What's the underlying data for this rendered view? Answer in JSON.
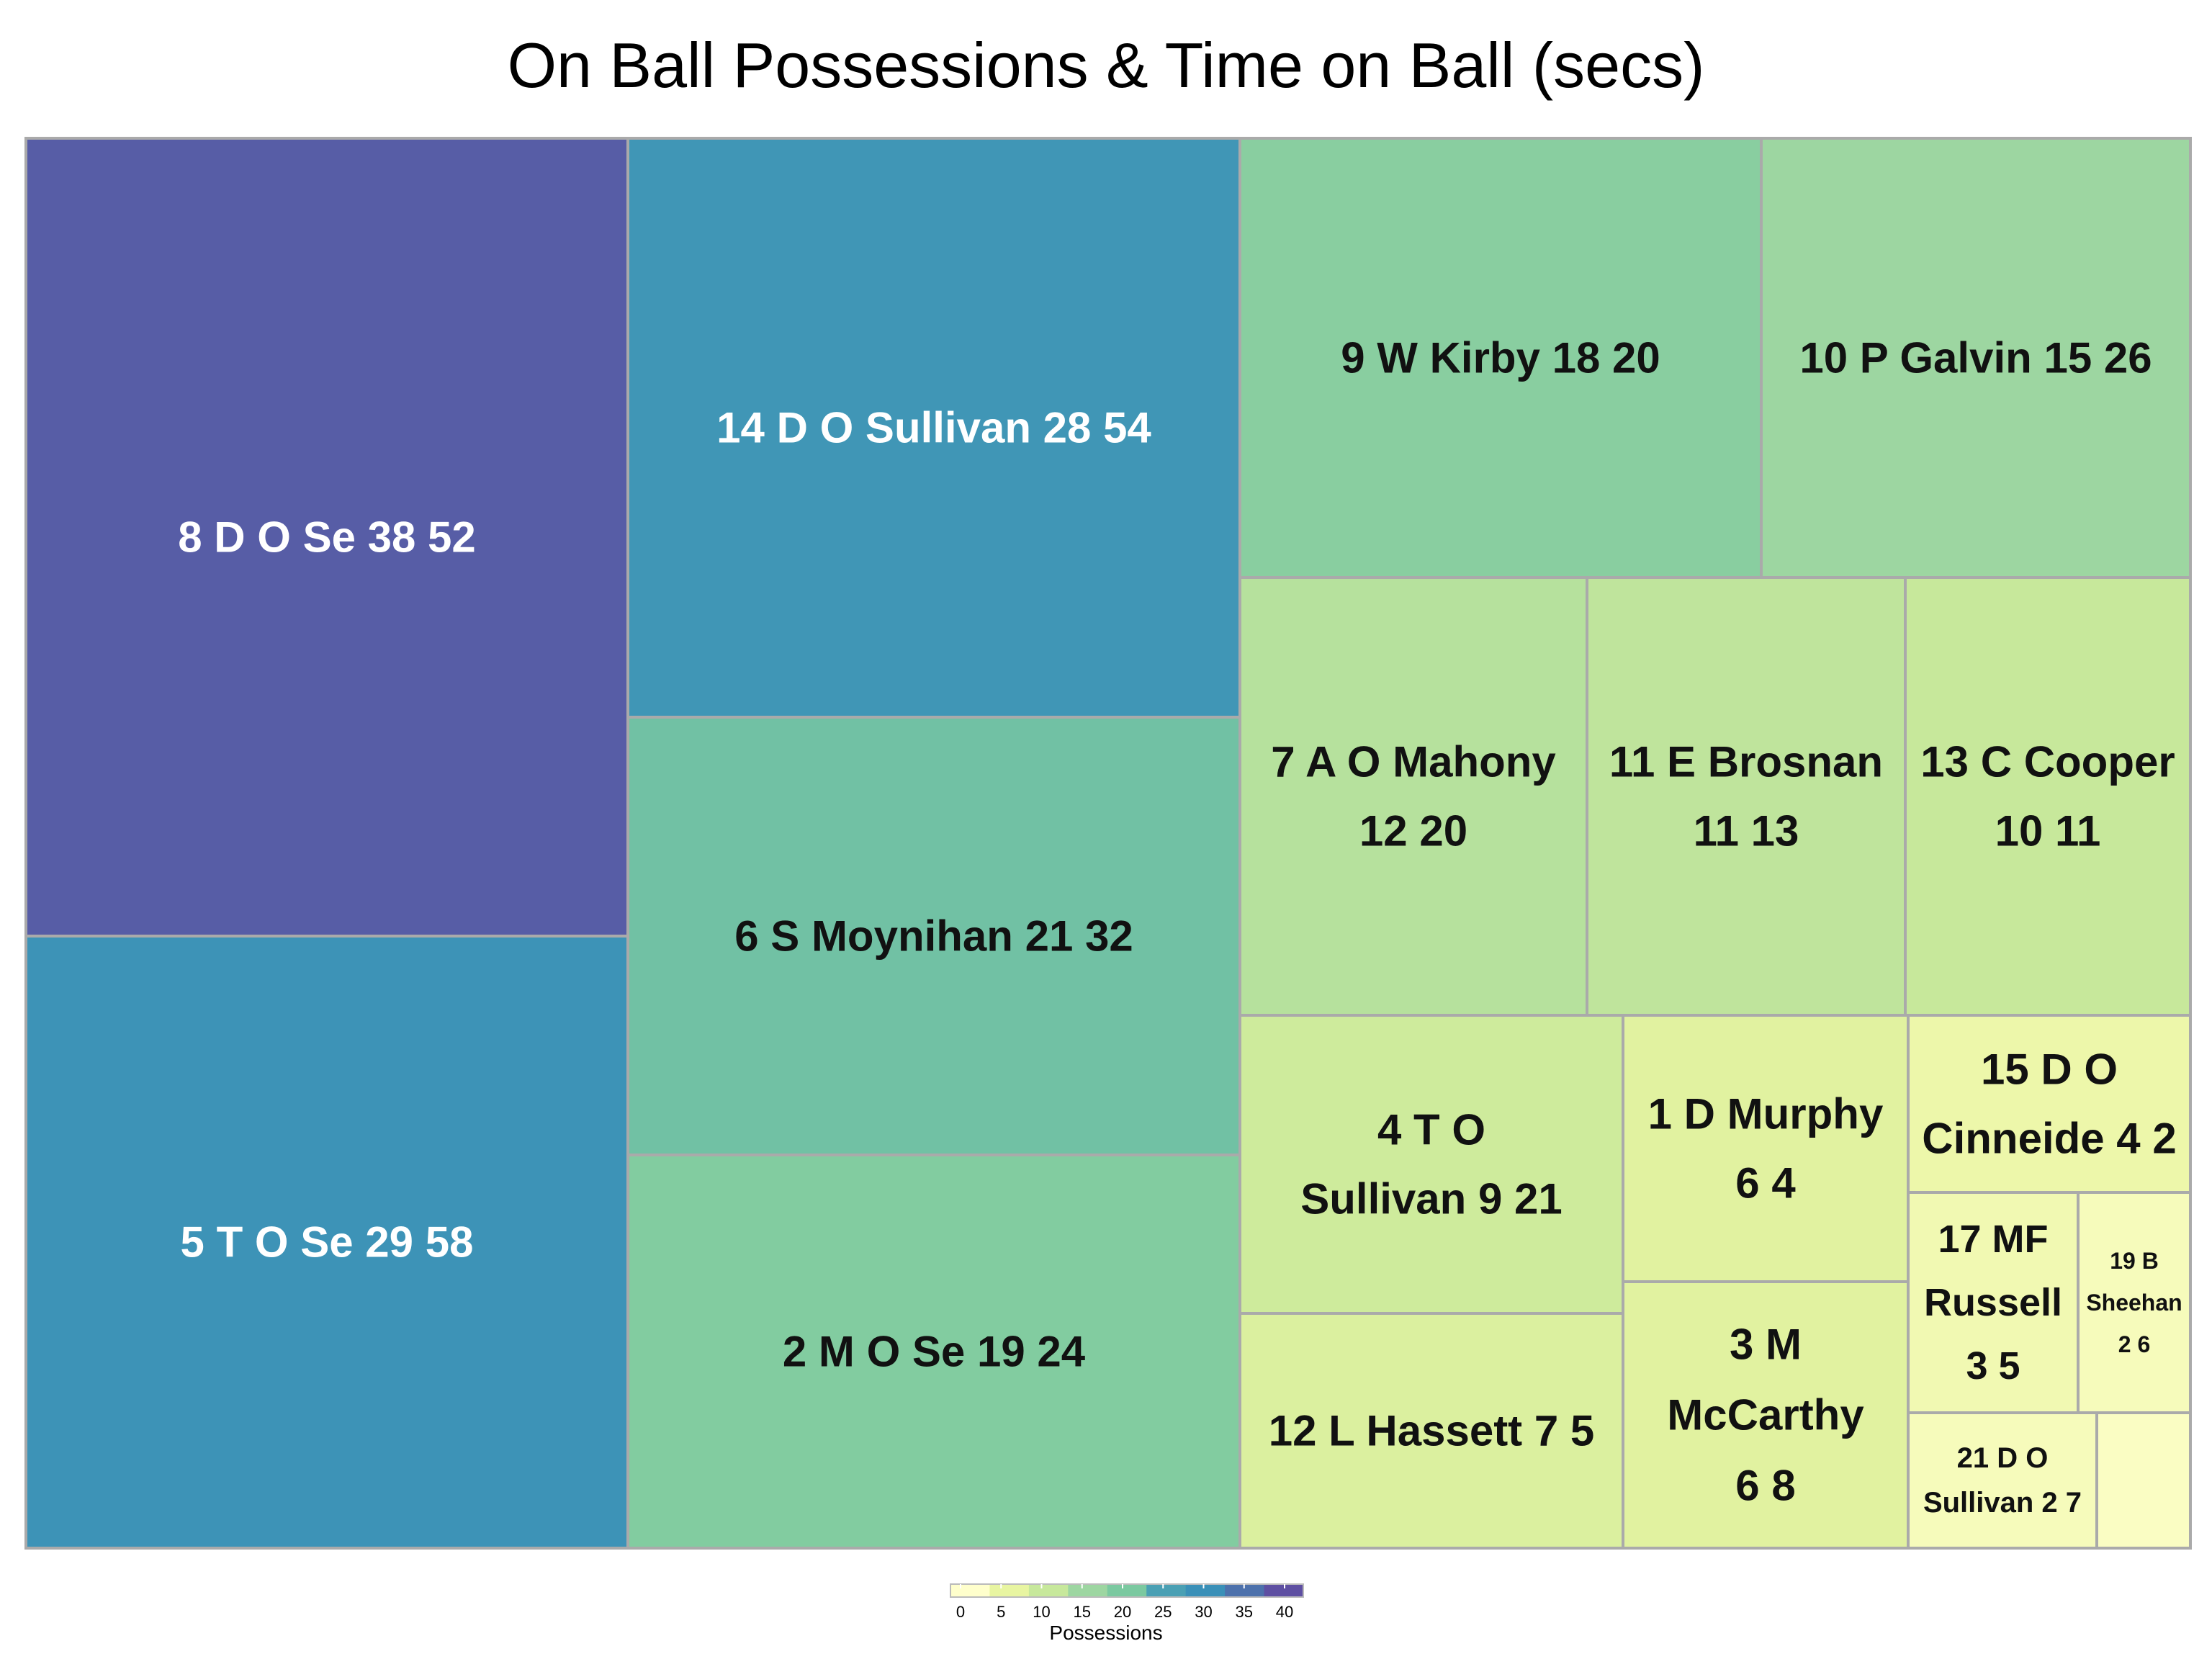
{
  "chart_data": {
    "type": "treemap",
    "title": "On Ball Possessions & Time on Ball (secs)",
    "value_field": "Time on Ball (secs)",
    "color_field": "Possessions",
    "tiles": [
      {
        "label": "8 D O Se 38 52",
        "lines": [
          "8 D O Se 38 52"
        ],
        "possessions": 38,
        "time": 52
      },
      {
        "label": "5 T O Se 29 58",
        "lines": [
          "5 T O Se 29 58"
        ],
        "possessions": 29,
        "time": 58
      },
      {
        "label": "14 D O Sullivan 28 54",
        "lines": [
          "14 D O Sullivan 28 54"
        ],
        "possessions": 28,
        "time": 54
      },
      {
        "label": "6 S Moynihan 21 32",
        "lines": [
          "6 S Moynihan 21 32"
        ],
        "possessions": 21,
        "time": 32
      },
      {
        "label": "2 M O Se 19 24",
        "lines": [
          "2 M O Se 19 24"
        ],
        "possessions": 19,
        "time": 24
      },
      {
        "label": "9 W Kirby 18 20",
        "lines": [
          "9 W Kirby 18 20"
        ],
        "possessions": 18,
        "time": 20
      },
      {
        "label": "10 P Galvin 15 26",
        "lines": [
          "10 P Galvin 15 26"
        ],
        "possessions": 15,
        "time": 26
      },
      {
        "label": "7 A O Mahony 12 20",
        "lines": [
          "7 A O Mahony",
          "12 20"
        ],
        "possessions": 12,
        "time": 20
      },
      {
        "label": "11 E Brosnan 11 13",
        "lines": [
          "11 E Brosnan",
          "11 13"
        ],
        "possessions": 11,
        "time": 13
      },
      {
        "label": "13 C Cooper 10 11",
        "lines": [
          "13 C Cooper",
          "10 11"
        ],
        "possessions": 10,
        "time": 11
      },
      {
        "label": "4 T O Sullivan 9 21",
        "lines": [
          "4 T O",
          "Sullivan 9 21"
        ],
        "possessions": 9,
        "time": 21
      },
      {
        "label": "12 L Hassett 7 5",
        "lines": [
          "12 L Hassett 7 5"
        ],
        "possessions": 7,
        "time": 5
      },
      {
        "label": "1 D Murphy 6 4",
        "lines": [
          "1 D Murphy",
          "6 4"
        ],
        "possessions": 6,
        "time": 4
      },
      {
        "label": "3 M McCarthy 6 8",
        "lines": [
          "3 M",
          "McCarthy",
          "6 8"
        ],
        "possessions": 6,
        "time": 8
      },
      {
        "label": "15 D O Cinneide 4 2",
        "lines": [
          "15 D O",
          "Cinneide 4 2"
        ],
        "possessions": 4,
        "time": 2
      },
      {
        "label": "17 MF Russell 3 5",
        "lines": [
          "17 MF",
          "Russell",
          "3 5"
        ],
        "possessions": 3,
        "time": 5
      },
      {
        "label": "19 B Sheehan 2 6",
        "lines": [
          "19 B",
          "Sheehan",
          "2 6"
        ],
        "possessions": 2,
        "time": 6
      },
      {
        "label": "21 D O Sullivan 2 7",
        "lines": [
          "21 D O",
          "Sullivan 2 7"
        ],
        "possessions": 2,
        "time": 7
      },
      {
        "label": "",
        "lines": [],
        "possessions": 1,
        "time": 1
      }
    ],
    "legend": {
      "title": "Possessions",
      "ticks": [
        "0",
        "5",
        "10",
        "15",
        "20",
        "25",
        "30",
        "35",
        "40"
      ],
      "range": [
        0,
        40
      ],
      "placement": "bottom-center"
    },
    "colors": [
      "#ffffcc",
      "#e8f5a1",
      "#c7e89b",
      "#9dd6a1",
      "#7bc9a0",
      "#4aa0b4",
      "#3a90b8",
      "#4d71ac",
      "#5e4fa2"
    ]
  }
}
